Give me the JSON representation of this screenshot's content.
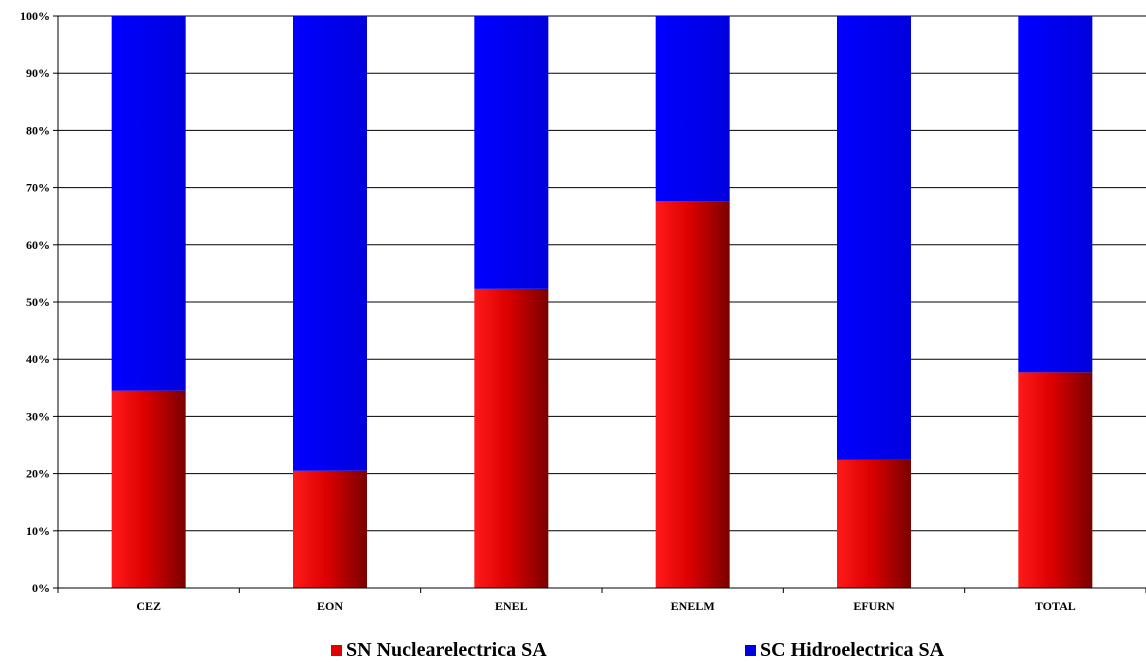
{
  "chart_data": {
    "type": "bar",
    "stacked": true,
    "percent_stacked": true,
    "categories": [
      "CEZ",
      "EON",
      "ENEL",
      "ENELM",
      "EFURN",
      "TOTAL"
    ],
    "series": [
      {
        "name": "SN Nuclearelectrica SA",
        "color": "#e00000",
        "values": [
          34.5,
          20.5,
          52.3,
          67.6,
          22.4,
          37.7
        ]
      },
      {
        "name": "SC Hidroelectrica SA",
        "color": "#0000e0",
        "values": [
          65.5,
          79.5,
          47.7,
          32.4,
          77.6,
          62.3
        ]
      }
    ],
    "ylim": [
      0,
      100
    ],
    "yticks": [
      "0%",
      "10%",
      "20%",
      "30%",
      "40%",
      "50%",
      "60%",
      "70%",
      "80%",
      "90%",
      "100%"
    ],
    "grid": true,
    "legend_position": "bottom"
  }
}
